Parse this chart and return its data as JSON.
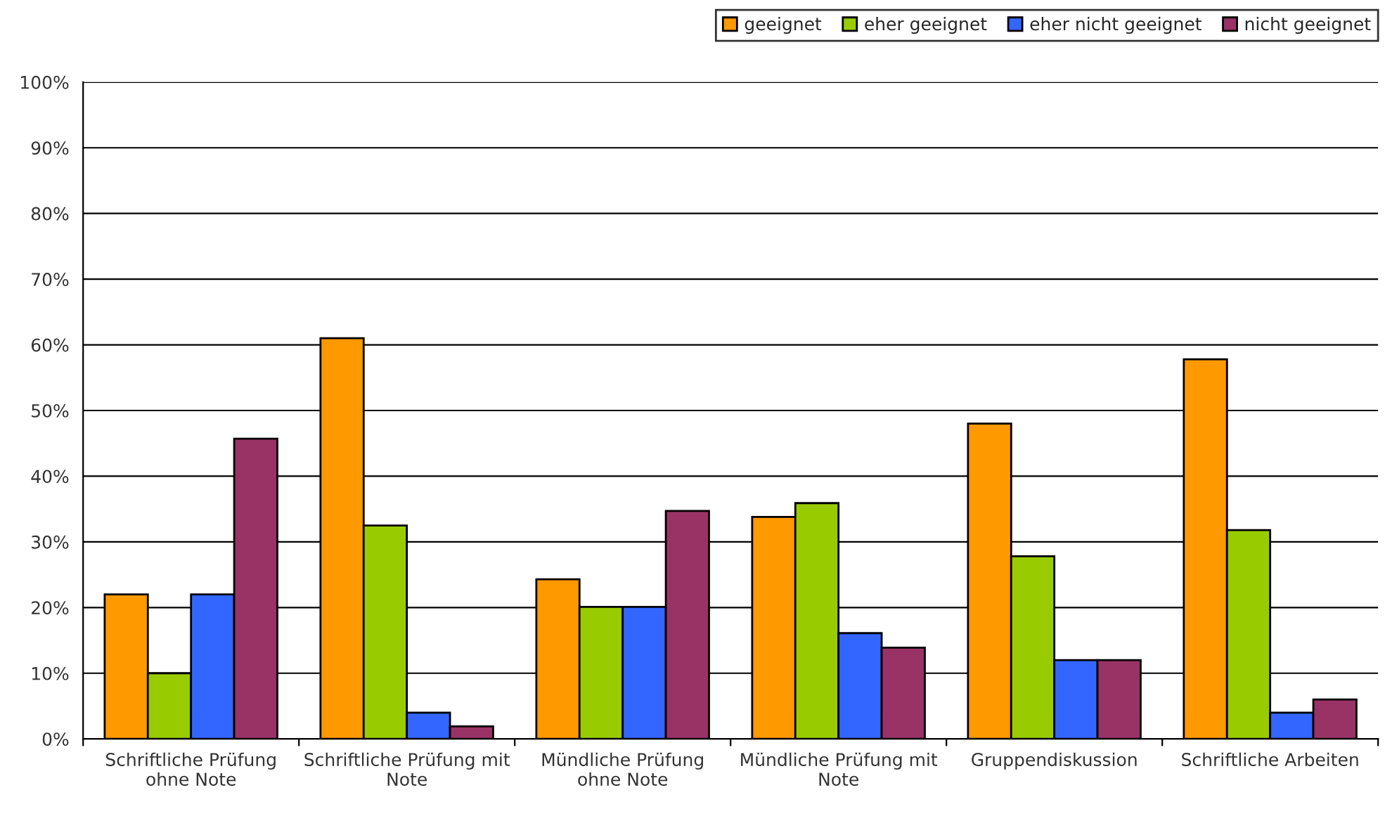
{
  "chart_data": {
    "type": "bar",
    "categories": [
      "Schriftliche Prüfung\nohne Note",
      "Schriftliche Prüfung mit\nNote",
      "Mündliche Prüfung\nohne Note",
      "Mündliche Prüfung mit\nNote",
      "Gruppendiskussion",
      "Schriftliche Arbeiten"
    ],
    "series": [
      {
        "name": "geeignet",
        "color": "#ff9900",
        "values": [
          22,
          61,
          24.3,
          33.8,
          48,
          57.8
        ]
      },
      {
        "name": "eher geeignet",
        "color": "#99cc00",
        "values": [
          10,
          32.5,
          20.1,
          35.9,
          27.8,
          31.8
        ]
      },
      {
        "name": "eher nicht geeignet",
        "color": "#3366ff",
        "values": [
          22,
          4,
          20.1,
          16.1,
          12,
          4
        ]
      },
      {
        "name": "nicht geeignet",
        "color": "#993366",
        "values": [
          45.7,
          1.9,
          34.7,
          13.9,
          12,
          6
        ]
      }
    ],
    "ylim": [
      0,
      100
    ],
    "yticks": [
      {
        "value": 0,
        "label": "0%"
      },
      {
        "value": 10,
        "label": "10%"
      },
      {
        "value": 20,
        "label": "20%"
      },
      {
        "value": 30,
        "label": "30%"
      },
      {
        "value": 40,
        "label": "40%"
      },
      {
        "value": 50,
        "label": "50%"
      },
      {
        "value": 60,
        "label": "60%"
      },
      {
        "value": 70,
        "label": "70%"
      },
      {
        "value": 80,
        "label": "80%"
      },
      {
        "value": 90,
        "label": "90%"
      },
      {
        "value": 100,
        "label": "100%"
      }
    ],
    "grid": "y",
    "legend": "top right"
  }
}
